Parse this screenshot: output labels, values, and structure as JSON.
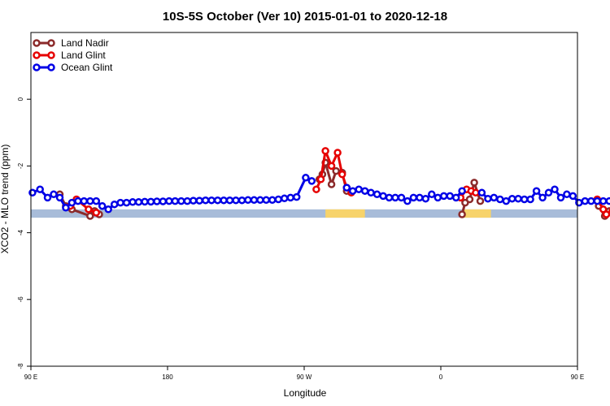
{
  "chart_data": {
    "type": "line",
    "title": "10S-5S October (Ver 10)   2015-01-01 to 2020-12-18",
    "xlabel": "Longitude",
    "ylabel": "XCO2 - MLO trend (ppm)",
    "xlim": [
      90,
      450
    ],
    "ylim": [
      -8,
      2
    ],
    "xticks": [
      {
        "value": 90,
        "label": "90 E"
      },
      {
        "value": 180,
        "label": "180"
      },
      {
        "value": 270,
        "label": "90 W"
      },
      {
        "value": 360,
        "label": "0"
      },
      {
        "value": 450,
        "label": "90 E"
      },
      {
        "value": 540,
        "label": "180"
      }
    ],
    "yticks": [
      {
        "value": 0,
        "label": "0"
      },
      {
        "value": -2,
        "label": "-2"
      },
      {
        "value": -4,
        "label": "-4"
      },
      {
        "value": -6,
        "label": "-6"
      },
      {
        "value": -8,
        "label": "-8"
      }
    ],
    "legend_position": "top-left",
    "background_band": {
      "y_range": [
        -3.55,
        -3.3
      ],
      "ocean_color": "#a8bcd9",
      "land_color": "#f7d36b",
      "land_x_ranges": [
        [
          284,
          310
        ],
        [
          375,
          393
        ]
      ]
    },
    "series": [
      {
        "name": "Land Nadir",
        "color": "#8b2a2a",
        "segments": [
          [
            [
              109,
              -2.85
            ],
            [
              113,
              -3.2
            ],
            [
              117,
              -3.3
            ],
            [
              129,
              -3.5
            ],
            [
              132,
              -3.35
            ],
            [
              135,
              -3.45
            ]
          ],
          [
            [
              280,
              -2.4
            ],
            [
              282,
              -2.25
            ],
            [
              284,
              -1.9
            ],
            [
              288,
              -2.55
            ],
            [
              291,
              -2.15
            ],
            [
              295,
              -2.2
            ],
            [
              298,
              -2.75
            ]
          ],
          [
            [
              374,
              -3.45
            ],
            [
              376,
              -3.1
            ],
            [
              379,
              -3.0
            ],
            [
              382,
              -2.5
            ],
            [
              386,
              -3.05
            ]
          ],
          [
            [
              464,
              -3.2
            ],
            [
              468,
              -3.5
            ],
            [
              471,
              -3.35
            ]
          ]
        ]
      },
      {
        "name": "Land Glint",
        "color": "#e60000",
        "segments": [
          [
            [
              116,
              -3.2
            ],
            [
              120,
              -3.0
            ],
            [
              128,
              -3.3
            ],
            [
              133,
              -3.4
            ]
          ],
          [
            [
              278,
              -2.7
            ],
            [
              281,
              -2.4
            ],
            [
              284,
              -1.55
            ],
            [
              288,
              -2.0
            ],
            [
              292,
              -1.6
            ],
            [
              295,
              -2.25
            ],
            [
              298,
              -2.65
            ],
            [
              301,
              -2.8
            ]
          ],
          [
            [
              373,
              -2.95
            ],
            [
              377,
              -2.7
            ],
            [
              380,
              -2.75
            ],
            [
              383,
              -2.8
            ]
          ],
          [
            [
              463,
              -3.0
            ],
            [
              467,
              -3.3
            ],
            [
              469,
              -3.45
            ],
            [
              473,
              -3.35
            ]
          ]
        ]
      },
      {
        "name": "Ocean Glint",
        "color": "#0000e6",
        "segments": [
          [
            [
              91,
              -2.8
            ],
            [
              96,
              -2.7
            ],
            [
              101,
              -2.95
            ],
            [
              105,
              -2.85
            ],
            [
              109,
              -2.95
            ],
            [
              113,
              -3.25
            ],
            [
              117,
              -3.1
            ],
            [
              121,
              -3.05
            ],
            [
              125,
              -3.05
            ],
            [
              129,
              -3.05
            ],
            [
              133,
              -3.05
            ],
            [
              137,
              -3.2
            ],
            [
              141,
              -3.3
            ],
            [
              145,
              -3.15
            ],
            [
              149,
              -3.1
            ],
            [
              153,
              -3.1
            ],
            [
              157,
              -3.08
            ],
            [
              161,
              -3.08
            ],
            [
              165,
              -3.07
            ],
            [
              169,
              -3.07
            ],
            [
              173,
              -3.06
            ],
            [
              177,
              -3.06
            ],
            [
              181,
              -3.05
            ],
            [
              185,
              -3.05
            ],
            [
              189,
              -3.05
            ],
            [
              193,
              -3.05
            ],
            [
              197,
              -3.04
            ],
            [
              201,
              -3.04
            ],
            [
              205,
              -3.03
            ],
            [
              209,
              -3.03
            ],
            [
              213,
              -3.03
            ],
            [
              217,
              -3.03
            ],
            [
              221,
              -3.03
            ],
            [
              225,
              -3.03
            ],
            [
              229,
              -3.03
            ],
            [
              233,
              -3.02
            ],
            [
              237,
              -3.02
            ],
            [
              241,
              -3.02
            ],
            [
              245,
              -3.02
            ],
            [
              249,
              -3.02
            ],
            [
              253,
              -3.0
            ],
            [
              257,
              -2.97
            ],
            [
              261,
              -2.95
            ],
            [
              265,
              -2.93
            ],
            [
              271,
              -2.35
            ],
            [
              275,
              -2.45
            ]
          ],
          [
            [
              298,
              -2.65
            ],
            [
              302,
              -2.75
            ],
            [
              306,
              -2.7
            ],
            [
              310,
              -2.75
            ],
            [
              314,
              -2.8
            ],
            [
              318,
              -2.85
            ],
            [
              322,
              -2.9
            ],
            [
              326,
              -2.95
            ],
            [
              330,
              -2.95
            ],
            [
              334,
              -2.95
            ],
            [
              338,
              -3.05
            ],
            [
              342,
              -2.95
            ],
            [
              346,
              -2.95
            ],
            [
              350,
              -2.98
            ],
            [
              354,
              -2.85
            ],
            [
              358,
              -2.95
            ],
            [
              362,
              -2.9
            ],
            [
              366,
              -2.9
            ],
            [
              370,
              -2.95
            ],
            [
              374,
              -2.75
            ]
          ],
          [
            [
              387,
              -2.8
            ],
            [
              391,
              -2.98
            ],
            [
              395,
              -2.95
            ],
            [
              399,
              -3.0
            ],
            [
              403,
              -3.05
            ],
            [
              407,
              -2.98
            ],
            [
              411,
              -2.98
            ],
            [
              415,
              -3.0
            ],
            [
              419,
              -3.0
            ],
            [
              423,
              -2.75
            ],
            [
              427,
              -2.95
            ],
            [
              431,
              -2.8
            ],
            [
              435,
              -2.7
            ],
            [
              439,
              -2.95
            ],
            [
              443,
              -2.85
            ],
            [
              447,
              -2.9
            ],
            [
              451,
              -3.1
            ],
            [
              455,
              -3.05
            ],
            [
              459,
              -3.05
            ],
            [
              463,
              -3.05
            ],
            [
              467,
              -3.05
            ],
            [
              471,
              -3.05
            ],
            [
              475,
              -3.15
            ],
            [
              479,
              -3.25
            ],
            [
              483,
              -3.15
            ],
            [
              487,
              -3.1
            ],
            [
              491,
              -3.1
            ],
            [
              495,
              -3.08
            ],
            [
              499,
              -3.08
            ]
          ]
        ]
      }
    ]
  }
}
